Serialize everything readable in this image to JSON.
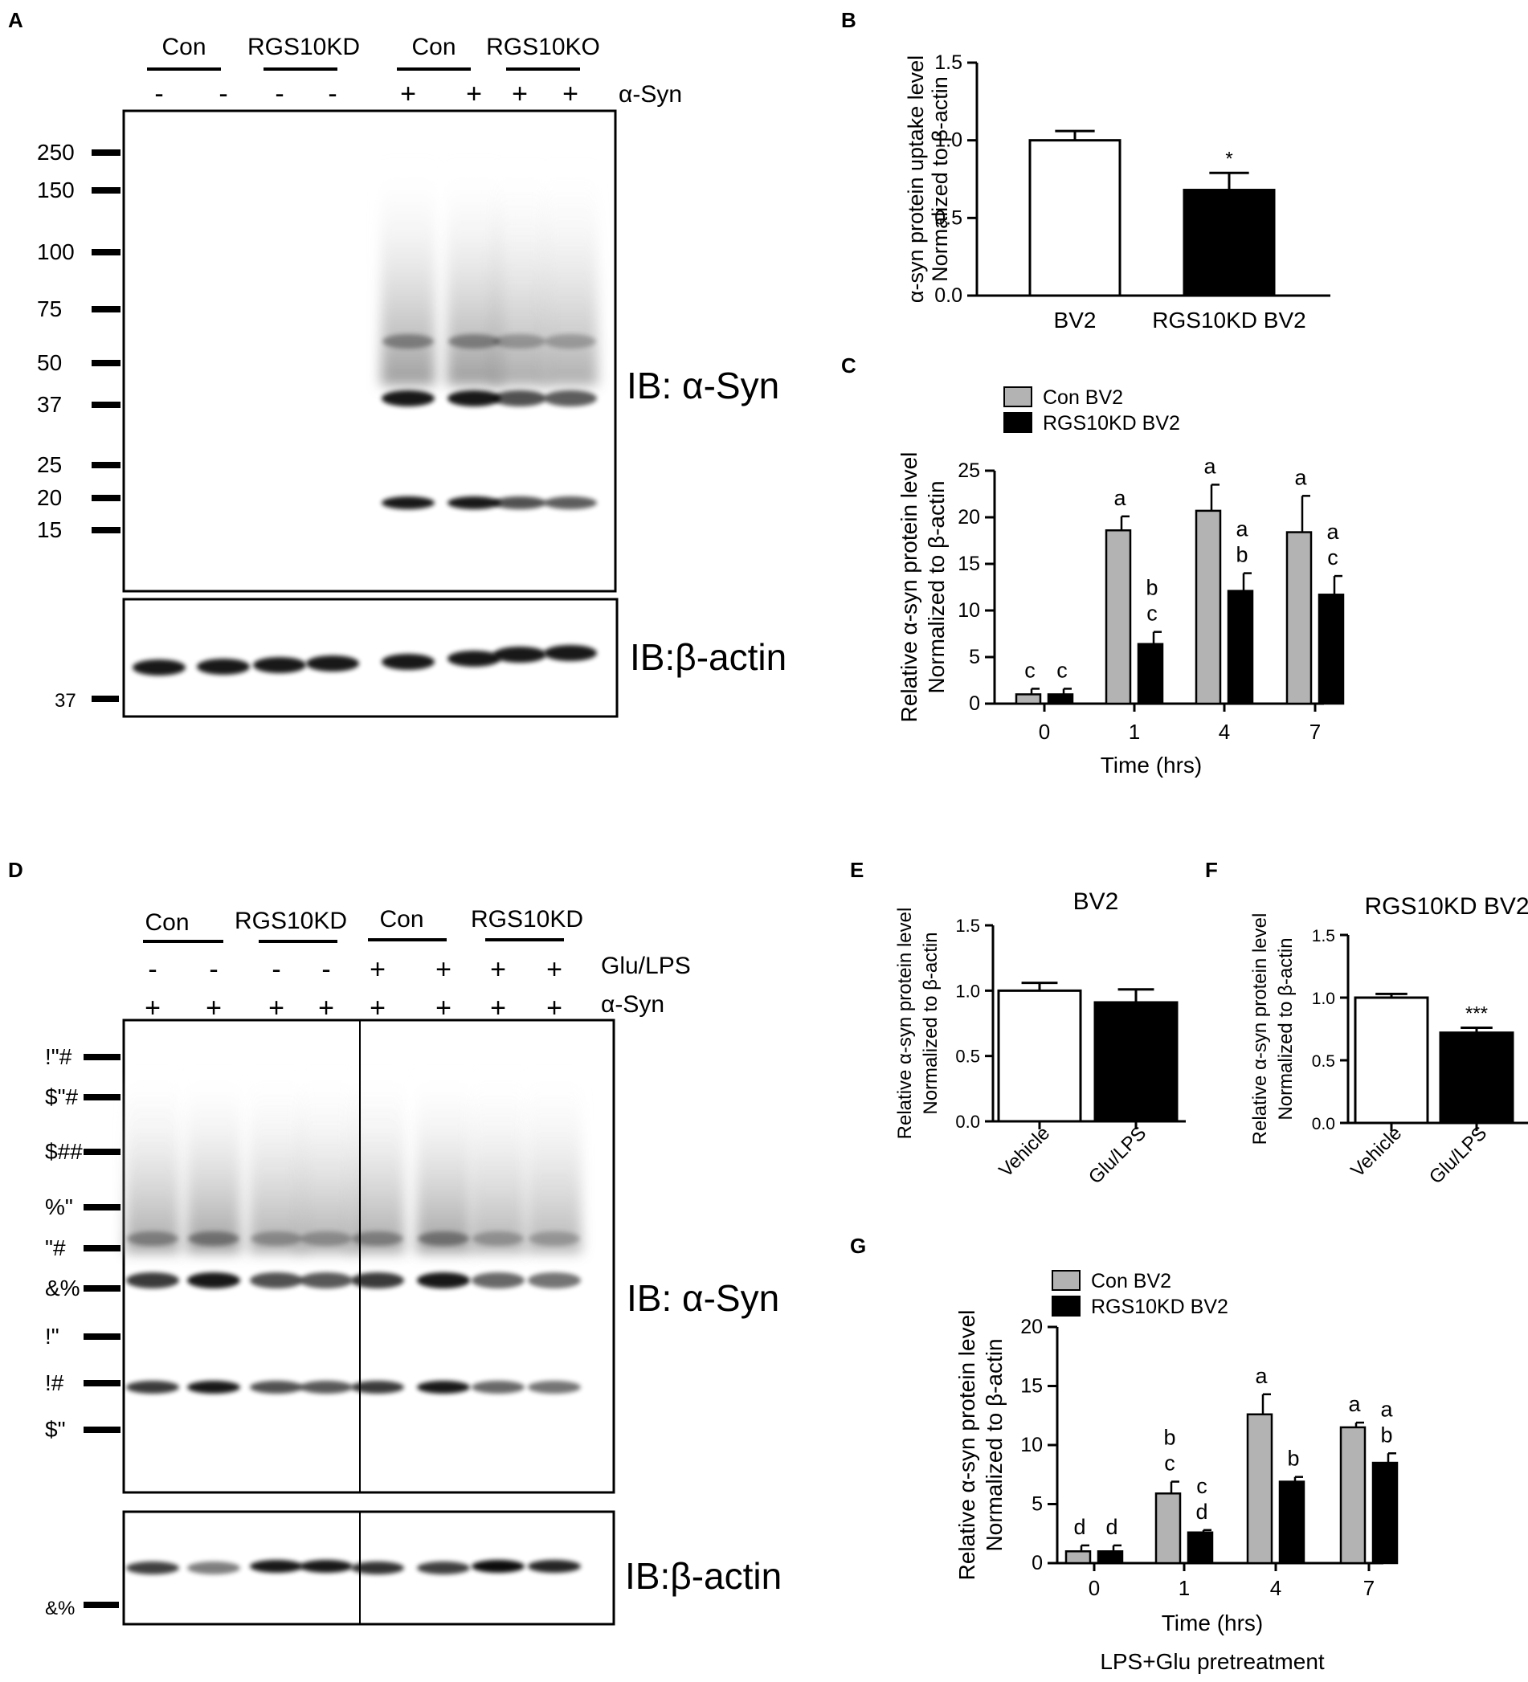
{
  "panels": {
    "A": {
      "letter": "A",
      "groups": [
        "Con",
        "RGS10KD",
        "Con",
        "RGS10KO"
      ],
      "syn_signs": [
        "-",
        "-",
        "-",
        "-",
        "+",
        "+",
        "+",
        "+"
      ],
      "syn_label": "α-Syn",
      "markers": [
        "250",
        "150",
        "100",
        "75",
        "50",
        "37",
        "25",
        "20",
        "15"
      ],
      "actin_marker": "37",
      "ib_syn": "IB: α-Syn",
      "ib_actin": "IB:β-actin"
    },
    "D": {
      "letter": "D",
      "groups": [
        "Con",
        "RGS10KD",
        "Con",
        "RGS10KD"
      ],
      "glu_signs": [
        "-",
        "-",
        "-",
        "-",
        "+",
        "+",
        "+",
        "+"
      ],
      "glu_label": "Glu/LPS",
      "syn_signs": [
        "+",
        "+",
        "+",
        "+",
        "+",
        "+",
        "+",
        "+"
      ],
      "syn_label": "α-Syn",
      "markers": [
        "!\"#",
        "$\"#",
        "$##",
        "%\"",
        "\"#",
        "&%",
        "!\"",
        "!#",
        "$\""
      ],
      "actin_marker": "&%",
      "ib_syn": "IB: α-Syn",
      "ib_actin": "IB:β-actin"
    },
    "B": {
      "letter": "B"
    },
    "C": {
      "letter": "C"
    },
    "E": {
      "letter": "E"
    },
    "F": {
      "letter": "F"
    },
    "G": {
      "letter": "G"
    }
  },
  "chart_data": [
    {
      "id": "B",
      "type": "bar",
      "categories": [
        "BV2",
        "RGS10KD BV2"
      ],
      "values": [
        1.0,
        0.68
      ],
      "errors": [
        0.06,
        0.11
      ],
      "fills": [
        "#ffffff",
        "#000000"
      ],
      "annotations": [
        "",
        "*"
      ],
      "title": "",
      "ylabel": [
        "α-syn protein uptake level",
        "Normalized to β-actin"
      ],
      "xlabel": "",
      "ylim": [
        0,
        1.5
      ],
      "yticks": [
        "0.0",
        "0.5",
        "1.0",
        "1.5"
      ],
      "grid": false
    },
    {
      "id": "C",
      "type": "bar",
      "categories": [
        "0",
        "1",
        "4",
        "7"
      ],
      "series": [
        {
          "name": "Con BV2",
          "color": "#b3b3b3",
          "values": [
            1.0,
            18.6,
            20.7,
            18.4
          ],
          "errors": [
            0.6,
            1.5,
            2.8,
            3.9
          ],
          "letters": [
            [
              "c"
            ],
            [
              "a"
            ],
            [
              "a"
            ],
            [
              "a"
            ]
          ]
        },
        {
          "name": "RGS10KD BV2",
          "color": "#000000",
          "values": [
            1.0,
            6.4,
            12.1,
            11.7
          ],
          "errors": [
            0.6,
            1.3,
            1.9,
            2.0
          ],
          "letters": [
            [
              "c"
            ],
            [
              "b",
              "c"
            ],
            [
              "a",
              "b"
            ],
            [
              "a",
              "c"
            ]
          ]
        }
      ],
      "title": "",
      "ylabel": [
        "Relative α-syn protein level",
        "Normalized to β-actin"
      ],
      "xlabel": "Time (hrs)",
      "ylim": [
        0,
        25
      ],
      "yticks": [
        "0",
        "5",
        "10",
        "15",
        "20",
        "25"
      ],
      "legend": "top-left",
      "grid": false
    },
    {
      "id": "E",
      "type": "bar",
      "categories": [
        "Vehicle",
        "Glu/LPS"
      ],
      "values": [
        1.0,
        0.91
      ],
      "errors": [
        0.06,
        0.1
      ],
      "fills": [
        "#ffffff",
        "#000000"
      ],
      "annotations": [
        "",
        ""
      ],
      "title": "BV2",
      "ylabel": [
        "Relative α-syn protein level",
        "Normalized to β-actin"
      ],
      "xlabel": "",
      "ylim": [
        0,
        1.5
      ],
      "yticks": [
        "0.0",
        "0.5",
        "1.0",
        "1.5"
      ],
      "grid": false
    },
    {
      "id": "F",
      "type": "bar",
      "categories": [
        "Vehicle",
        "Glu/LPS"
      ],
      "values": [
        1.0,
        0.72
      ],
      "errors": [
        0.03,
        0.04
      ],
      "fills": [
        "#ffffff",
        "#000000"
      ],
      "annotations": [
        "",
        "***"
      ],
      "title": "RGS10KD BV2",
      "ylabel": [
        "Relative α-syn protein level",
        "Normalized to β-actin"
      ],
      "xlabel": "",
      "ylim": [
        0,
        1.5
      ],
      "yticks": [
        "0.0",
        "0.5",
        "1.0",
        "1.5"
      ],
      "grid": false
    },
    {
      "id": "G",
      "type": "bar",
      "categories": [
        "0",
        "1",
        "4",
        "7"
      ],
      "series": [
        {
          "name": "Con BV2",
          "color": "#b3b3b3",
          "values": [
            1.0,
            5.9,
            12.6,
            11.5
          ],
          "errors": [
            0.5,
            1.0,
            1.7,
            0.4
          ],
          "letters": [
            [
              "d"
            ],
            [
              "b",
              "c"
            ],
            [
              "a"
            ],
            [
              "a"
            ]
          ]
        },
        {
          "name": "RGS10KD BV2",
          "color": "#000000",
          "values": [
            1.0,
            2.6,
            6.9,
            8.5
          ],
          "errors": [
            0.5,
            0.2,
            0.4,
            0.8
          ],
          "letters": [
            [
              "d"
            ],
            [
              "c",
              "d"
            ],
            [
              "b"
            ],
            [
              "a",
              "b"
            ]
          ]
        }
      ],
      "title": "",
      "ylabel": [
        "Relative α-syn protein level",
        "Normalized to β-actin"
      ],
      "xlabel": [
        "Time (hrs)",
        "LPS+Glu pretreatment"
      ],
      "ylim": [
        0,
        20
      ],
      "yticks": [
        "0",
        "5",
        "10",
        "15",
        "20"
      ],
      "legend": "top-left",
      "grid": false
    }
  ]
}
